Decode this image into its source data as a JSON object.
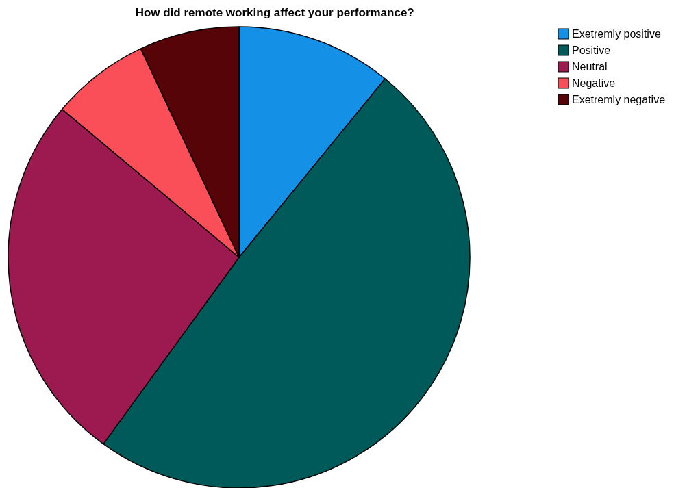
{
  "chart_data": {
    "type": "pie",
    "title": "How did remote working affect your performance?",
    "categories": [
      "Exetremly positive",
      "Positive",
      "Neutral",
      "Negative",
      "Exetremly negative"
    ],
    "values": [
      10.9,
      49.1,
      26.1,
      6.9,
      7.0
    ],
    "colors": [
      "#1490e6",
      "#005a5a",
      "#9c1a50",
      "#fa4f58",
      "#570408"
    ],
    "legend": "top right"
  }
}
